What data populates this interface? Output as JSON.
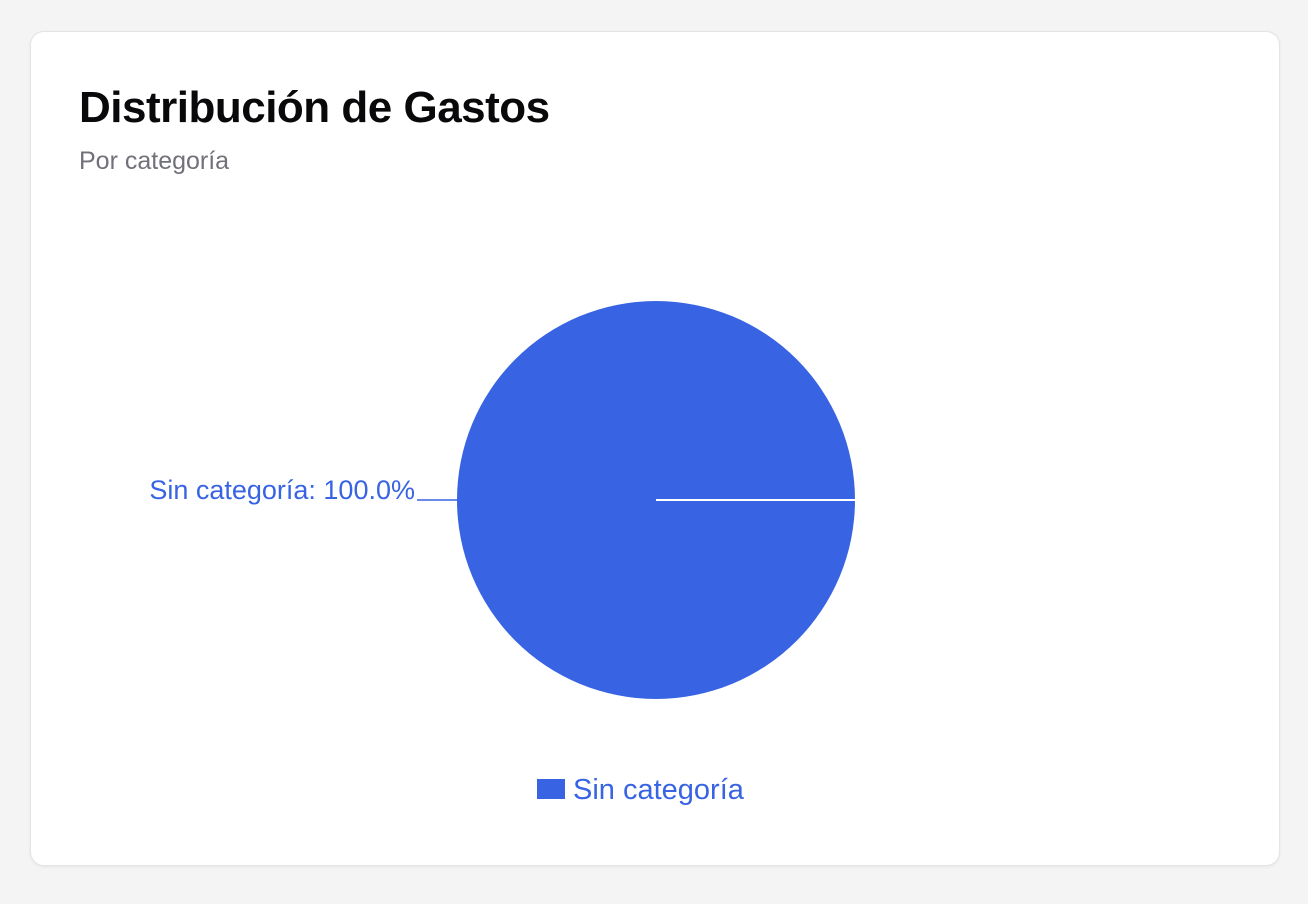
{
  "card": {
    "title": "Distribución de Gastos",
    "subtitle": "Por categoría"
  },
  "colors": {
    "series": "#3864e4",
    "background": "#f4f4f5",
    "card": "#ffffff"
  },
  "chart_data": {
    "type": "pie",
    "title": "Distribución de Gastos",
    "subtitle": "Por categoría",
    "categories": [
      "Sin categoría"
    ],
    "values": [
      100.0
    ],
    "labels": [
      "Sin categoría: 100.0%"
    ],
    "legend": [
      "Sin categoría"
    ],
    "legend_position": "bottom"
  }
}
